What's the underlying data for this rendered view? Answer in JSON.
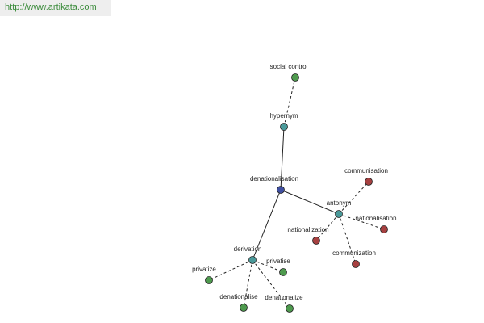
{
  "header": {
    "url": "http://www.artikata.com"
  },
  "nodes": [
    {
      "label": "social control"
    },
    {
      "label": "hypernym"
    },
    {
      "label": "denationalisation"
    },
    {
      "label": "antonym"
    },
    {
      "label": "communisation"
    },
    {
      "label": "nationalisation"
    },
    {
      "label": "nationalization"
    },
    {
      "label": "communization"
    },
    {
      "label": "derivation"
    },
    {
      "label": "privatise"
    },
    {
      "label": "privatize"
    },
    {
      "label": "denationalise"
    },
    {
      "label": "denationalize"
    }
  ]
}
